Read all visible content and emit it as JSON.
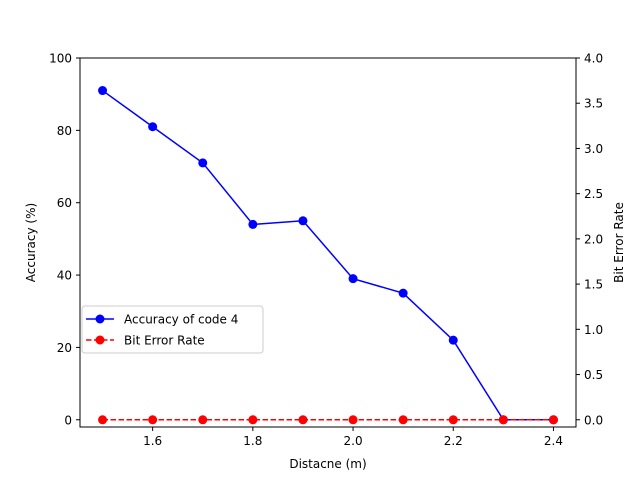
{
  "chart_data": {
    "type": "line",
    "title": "",
    "xlabel": "Distacne (m)",
    "ylabel_left": "Accuracy (%)",
    "ylabel_right": "Bit Error Rate",
    "x": [
      1.5,
      1.6,
      1.7,
      1.8,
      1.9,
      2.0,
      2.1,
      2.2,
      2.3,
      2.4
    ],
    "xlim": [
      1.455,
      2.445
    ],
    "ylim_left": [
      -2,
      100
    ],
    "ylim_right": [
      -0.08,
      4.0
    ],
    "x_ticks": [
      "1.6",
      "1.8",
      "2.0",
      "2.2",
      "2.4"
    ],
    "y_left_ticks": [
      "0",
      "20",
      "40",
      "60",
      "80",
      "100"
    ],
    "y_right_ticks": [
      "0.0",
      "0.5",
      "1.0",
      "1.5",
      "2.0",
      "2.5",
      "3.0",
      "3.5",
      "4.0"
    ],
    "series": [
      {
        "name": "Accuracy of code 4",
        "axis": "left",
        "color": "#0000ff",
        "linestyle": "solid",
        "marker": "circle",
        "values": [
          91,
          81,
          71,
          54,
          55,
          39,
          35,
          22,
          0,
          0
        ]
      },
      {
        "name": "Bit Error Rate",
        "axis": "right",
        "color": "#ff0000",
        "linestyle": "dashed",
        "marker": "circle",
        "values": [
          0,
          0,
          0,
          0,
          0,
          0,
          0,
          0,
          0,
          0
        ]
      }
    ],
    "legend_position": "center-left",
    "grid": false
  }
}
